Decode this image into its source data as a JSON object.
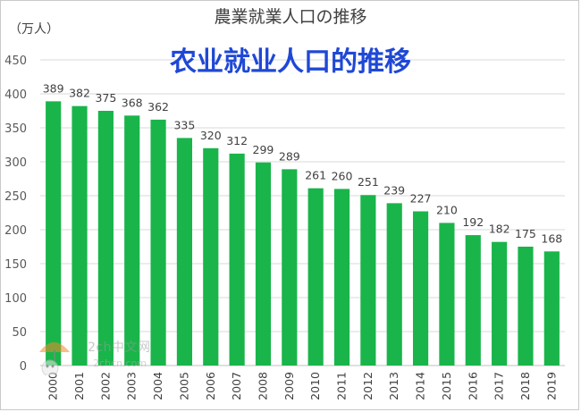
{
  "chart_data": {
    "type": "bar",
    "title": "農業就業人口の推移",
    "subtitle": "农业就业人口的推移",
    "ylabel": "（万人）",
    "xlabel": "",
    "ylim": [
      0,
      450
    ],
    "yticks": [
      "0",
      "50",
      "100",
      "150",
      "200",
      "250",
      "300",
      "350",
      "400",
      "450"
    ],
    "categories": [
      "2000",
      "2001",
      "2002",
      "2003",
      "2004",
      "2005",
      "2006",
      "2007",
      "2008",
      "2009",
      "2010",
      "2011",
      "2012",
      "2013",
      "2014",
      "2015",
      "2016",
      "2017",
      "2018",
      "2019"
    ],
    "values": [
      389,
      382,
      375,
      368,
      362,
      335,
      320,
      312,
      299,
      289,
      261,
      260,
      251,
      239,
      227,
      210,
      192,
      182,
      175,
      168
    ],
    "bar_color": "#19b54a",
    "grid": true,
    "legend": "none"
  },
  "watermark": {
    "text": "2ch中文网",
    "sub": "2chcn.com",
    "icon": "umbrella-logo-icon"
  }
}
